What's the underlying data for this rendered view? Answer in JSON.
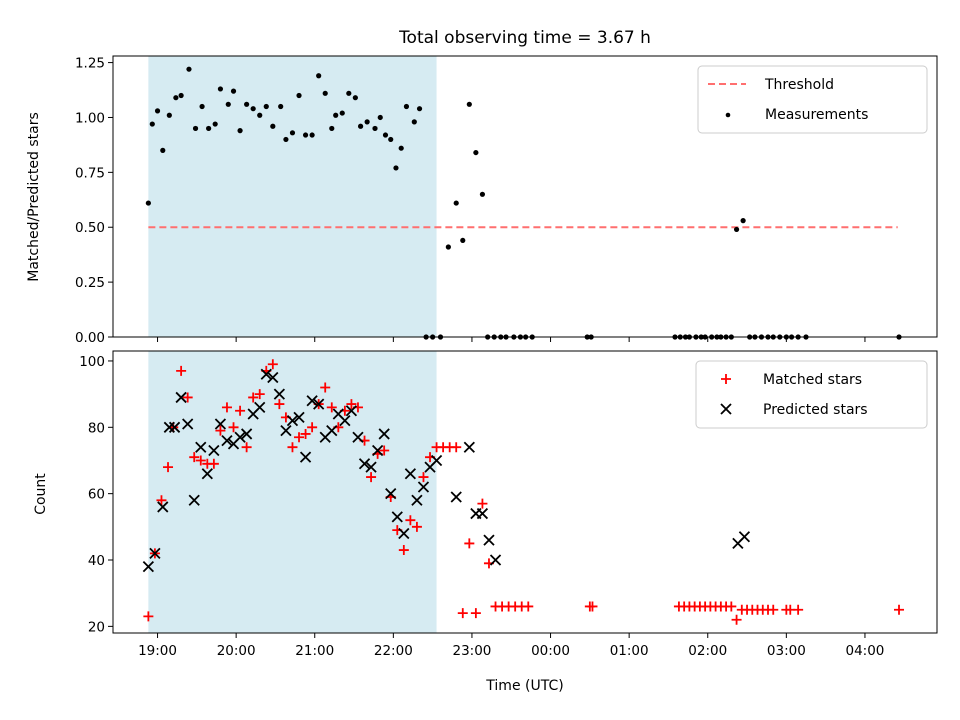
{
  "title": "Total observing time = 3.67 h",
  "colors": {
    "threshold": "#ff6f6f",
    "measurements": "#000000",
    "matched": "#ff0000",
    "predicted": "#000000",
    "shade": "#add8e6"
  },
  "chart_data": [
    {
      "type": "scatter",
      "ylabel": "Matched/Predicted stars",
      "xlabel": "",
      "xlim": [
        "18:26",
        "04:55"
      ],
      "ylim": [
        0,
        1.28
      ],
      "yticks": [
        "0.00",
        "0.25",
        "0.50",
        "0.75",
        "1.00",
        "1.25"
      ],
      "ytick_values": [
        0,
        0.25,
        0.5,
        0.75,
        1.0,
        1.25
      ],
      "shaded_interval": [
        "18:53",
        "22:33"
      ],
      "legend_position": "upper right",
      "legend": [
        "Threshold",
        "Measurements"
      ],
      "threshold": {
        "name": "Threshold",
        "y": 0.5,
        "x": [
          "18:53",
          "04:25"
        ],
        "style": "dashed"
      },
      "series": [
        {
          "name": "Measurements",
          "marker": "dot",
          "x": [
            "18:53",
            "18:56",
            "19:00",
            "19:04",
            "19:09",
            "19:14",
            "19:18",
            "19:24",
            "19:29",
            "19:34",
            "19:39",
            "19:44",
            "19:48",
            "19:54",
            "19:58",
            "20:03",
            "20:08",
            "20:13",
            "20:18",
            "20:23",
            "20:28",
            "20:34",
            "20:38",
            "20:43",
            "20:48",
            "20:53",
            "20:58",
            "21:03",
            "21:08",
            "21:13",
            "21:16",
            "21:21",
            "21:26",
            "21:31",
            "21:35",
            "21:40",
            "21:46",
            "21:50",
            "21:54",
            "21:58",
            "22:02",
            "22:06",
            "22:10",
            "22:16",
            "22:20",
            "22:25",
            "22:30",
            "22:36",
            "22:42",
            "22:48",
            "22:53",
            "22:58",
            "23:03",
            "23:08",
            "23:12",
            "23:17",
            "23:22",
            "23:26",
            "23:32",
            "23:37",
            "23:41",
            "23:46",
            "00:28",
            "00:31",
            "01:35",
            "01:39",
            "01:43",
            "01:46",
            "01:51",
            "01:55",
            "01:58",
            "02:03",
            "02:07",
            "02:10",
            "02:14",
            "02:18",
            "02:22",
            "02:27",
            "02:32",
            "02:36",
            "02:41",
            "02:46",
            "02:50",
            "02:55",
            "03:00",
            "03:04",
            "03:09",
            "03:15",
            "04:26"
          ],
          "y": [
            0.61,
            0.97,
            1.03,
            0.85,
            1.01,
            1.09,
            1.1,
            1.22,
            0.95,
            1.05,
            0.95,
            0.97,
            1.13,
            1.06,
            1.12,
            0.94,
            1.06,
            1.04,
            1.01,
            1.05,
            0.96,
            1.05,
            0.9,
            0.93,
            1.1,
            0.92,
            0.92,
            1.19,
            1.11,
            0.95,
            1.01,
            1.02,
            1.11,
            1.09,
            0.96,
            0.98,
            0.95,
            1.0,
            0.92,
            0.9,
            0.77,
            0.86,
            1.05,
            0.98,
            1.04,
            0.0,
            0.0,
            0.0,
            0.41,
            0.61,
            0.44,
            1.06,
            0.84,
            0.65,
            0.0,
            0.0,
            0.0,
            0.0,
            0.0,
            0.0,
            0.0,
            0.0,
            0.0,
            0.0,
            0.0,
            0.0,
            0.0,
            0.0,
            0.0,
            0.0,
            0.0,
            0.0,
            0.0,
            0.0,
            0.0,
            0.0,
            0.49,
            0.53,
            0.0,
            0.0,
            0.0,
            0.0,
            0.0,
            0.0,
            0.0,
            0.0,
            0.0,
            0.0,
            0.0
          ]
        }
      ]
    },
    {
      "type": "scatter",
      "ylabel": "Count",
      "xlabel": "Time (UTC)",
      "xlim": [
        "18:26",
        "04:55"
      ],
      "ylim": [
        18,
        103
      ],
      "yticks": [
        "20",
        "40",
        "60",
        "80",
        "100"
      ],
      "ytick_values": [
        20,
        40,
        60,
        80,
        100
      ],
      "xticks": [
        "19:00",
        "20:00",
        "21:00",
        "22:00",
        "23:00",
        "00:00",
        "01:00",
        "02:00",
        "03:00",
        "04:00"
      ],
      "shaded_interval": [
        "18:53",
        "22:33"
      ],
      "legend_position": "upper right",
      "legend": [
        "Matched stars",
        "Predicted stars"
      ],
      "series": [
        {
          "name": "Matched stars",
          "marker": "plus",
          "x": [
            "18:53",
            "18:58",
            "19:03",
            "19:08",
            "19:12",
            "19:18",
            "19:23",
            "19:28",
            "19:33",
            "19:38",
            "19:43",
            "19:48",
            "19:53",
            "19:58",
            "20:03",
            "20:08",
            "20:13",
            "20:18",
            "20:23",
            "20:28",
            "20:33",
            "20:38",
            "20:43",
            "20:48",
            "20:53",
            "20:58",
            "21:03",
            "21:08",
            "21:13",
            "21:18",
            "21:23",
            "21:28",
            "21:33",
            "21:38",
            "21:43",
            "21:48",
            "21:53",
            "21:58",
            "22:03",
            "22:08",
            "22:13",
            "22:18",
            "22:23",
            "22:28",
            "22:33",
            "22:38",
            "22:43",
            "22:48",
            "22:53",
            "22:58",
            "23:03",
            "23:08",
            "23:13",
            "23:18",
            "23:23",
            "23:28",
            "23:33",
            "23:38",
            "23:43",
            "00:30",
            "00:32",
            "01:38",
            "01:42",
            "01:46",
            "01:50",
            "01:54",
            "01:58",
            "02:02",
            "02:06",
            "02:10",
            "02:14",
            "02:18",
            "02:22",
            "02:26",
            "02:30",
            "02:34",
            "02:38",
            "02:42",
            "02:46",
            "02:50",
            "03:00",
            "03:03",
            "03:09",
            "04:26"
          ],
          "y": [
            23,
            42,
            58,
            68,
            80,
            97,
            89,
            71,
            70,
            69,
            69,
            79,
            86,
            80,
            85,
            74,
            89,
            90,
            97,
            99,
            87,
            83,
            74,
            77,
            78,
            80,
            87,
            92,
            86,
            80,
            85,
            87,
            86,
            76,
            65,
            72,
            73,
            59,
            49,
            43,
            52,
            50,
            65,
            71,
            74,
            74,
            74,
            74,
            24,
            45,
            24,
            57,
            39,
            26,
            26,
            26,
            26,
            26,
            26,
            26,
            26,
            26,
            26,
            26,
            26,
            26,
            26,
            26,
            26,
            26,
            26,
            26,
            22,
            25,
            25,
            25,
            25,
            25,
            25,
            25,
            25,
            25,
            25,
            25
          ]
        },
        {
          "name": "Predicted stars",
          "marker": "x",
          "x": [
            "18:53",
            "18:58",
            "19:04",
            "19:09",
            "19:13",
            "19:18",
            "19:23",
            "19:28",
            "19:33",
            "19:38",
            "19:43",
            "19:48",
            "19:53",
            "19:58",
            "20:03",
            "20:08",
            "20:13",
            "20:18",
            "20:23",
            "20:28",
            "20:33",
            "20:38",
            "20:43",
            "20:48",
            "20:53",
            "20:58",
            "21:03",
            "21:08",
            "21:13",
            "21:18",
            "21:23",
            "21:28",
            "21:33",
            "21:38",
            "21:43",
            "21:48",
            "21:53",
            "21:58",
            "22:03",
            "22:08",
            "22:13",
            "22:18",
            "22:23",
            "22:28",
            "22:33",
            "22:48",
            "22:58",
            "23:03",
            "23:08",
            "23:13",
            "23:18",
            "02:23",
            "02:28"
          ],
          "y": [
            38,
            42,
            56,
            80,
            80,
            89,
            81,
            58,
            74,
            66,
            73,
            81,
            76,
            75,
            77,
            78,
            84,
            86,
            96,
            95,
            90,
            79,
            82,
            83,
            71,
            88,
            87,
            77,
            79,
            84,
            82,
            85,
            77,
            69,
            68,
            73,
            78,
            60,
            53,
            48,
            66,
            58,
            62,
            68,
            70,
            59,
            74,
            54,
            54,
            46,
            40,
            45,
            47
          ]
        }
      ]
    }
  ]
}
